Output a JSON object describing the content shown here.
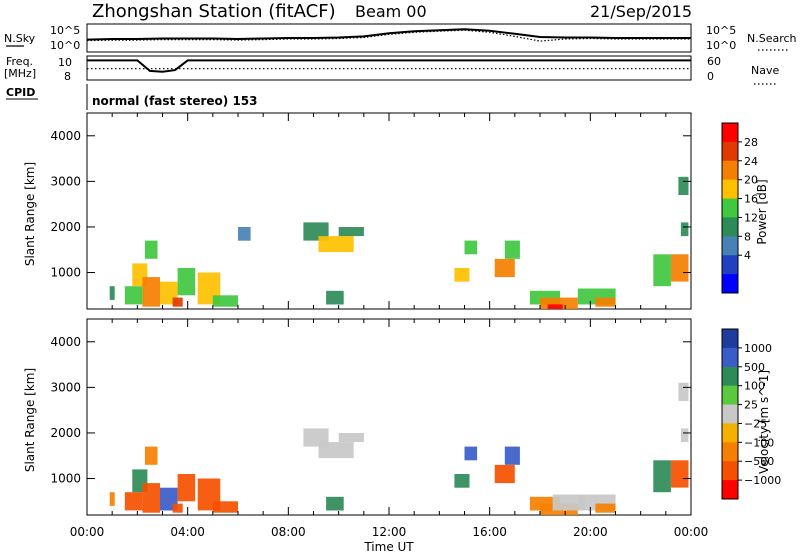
{
  "header": {
    "title": "Zhongshan Station (fitACF)",
    "beam": "Beam 00",
    "date": "21/Sep/2015"
  },
  "panel_labels": {
    "nsky": "N.Sky",
    "nsky_ticks": [
      "10^5",
      "10^0"
    ],
    "nsearch": "N.Search",
    "nsearch_ticks": [
      "10^5",
      "10^0"
    ],
    "freq": "Freq.",
    "freq_unit": "[MHz]",
    "freq_ticks": [
      "10",
      "8"
    ],
    "nave": "Nave",
    "nave_ticks": [
      "60",
      "0"
    ],
    "cpid": "CPID",
    "cpid_text": "normal (fast stereo) 153"
  },
  "chart_data": [
    {
      "type": "line",
      "title": "",
      "x": [
        0,
        1,
        2,
        3,
        4,
        5,
        6,
        7,
        8,
        9,
        10,
        11,
        12,
        13,
        14,
        15,
        16,
        17,
        18,
        19,
        20,
        21,
        22,
        23,
        24
      ],
      "series": [
        {
          "name": "N.Sky",
          "values": [
            2.2,
            2.3,
            2.3,
            2.4,
            2.4,
            2.4,
            2.3,
            2.4,
            2.5,
            2.5,
            2.6,
            2.8,
            3.4,
            3.8,
            4.0,
            4.2,
            3.9,
            3.3,
            2.7,
            2.6,
            2.6,
            2.5,
            2.5,
            2.5,
            2.5
          ]
        },
        {
          "name": "N.Search",
          "values": [
            2.0,
            2.1,
            2.1,
            2.2,
            2.2,
            2.2,
            2.1,
            2.2,
            2.3,
            2.3,
            2.4,
            2.6,
            3.2,
            3.6,
            3.8,
            4.0,
            3.6,
            2.8,
            1.9,
            2.3,
            2.4,
            2.3,
            2.3,
            2.3,
            2.3
          ]
        }
      ],
      "yscale": "log",
      "ylim": [
        0,
        5
      ]
    },
    {
      "type": "line",
      "x": [
        0,
        1,
        2,
        2.5,
        3,
        3.5,
        4,
        5,
        6,
        8,
        10,
        12,
        14,
        16,
        18,
        20,
        22,
        24
      ],
      "series": [
        {
          "name": "Freq.",
          "values": [
            10.3,
            10.3,
            10.3,
            9.0,
            8.9,
            9.1,
            10.3,
            10.3,
            10.3,
            10.3,
            10.3,
            10.3,
            10.3,
            10.3,
            10.3,
            10.3,
            10.3,
            10.3
          ]
        },
        {
          "name": "Nave",
          "values": [
            28,
            28,
            28,
            28,
            28,
            28,
            28,
            28,
            28,
            28,
            28,
            28,
            28,
            28,
            28,
            28,
            28,
            28
          ]
        }
      ],
      "freq_ylim": [
        8,
        10
      ],
      "nave_ylim": [
        0,
        60
      ]
    },
    {
      "type": "heatmap",
      "title": "Power",
      "ylabel": "Slant Range [km]",
      "xlabel": "Time UT",
      "xlim": [
        0,
        24
      ],
      "ylim": [
        200,
        4500
      ],
      "xticks": [
        "00:00",
        "04:00",
        "08:00",
        "12:00",
        "16:00",
        "20:00",
        "00:00"
      ],
      "yticks": [
        1000,
        2000,
        3000,
        4000
      ],
      "colorbar": {
        "label": "Power [dB]",
        "ticks": [
          "28",
          "24",
          "20",
          "16",
          "12",
          "8",
          "4"
        ],
        "colors": [
          "#ff0000",
          "#e03a00",
          "#f57f00",
          "#ffc000",
          "#40c840",
          "#2e8b57",
          "#4682b4",
          "#2040c0",
          "#0000ff"
        ]
      },
      "cells": [
        {
          "t0": 0.9,
          "t1": 1.1,
          "r0": 400,
          "r1": 700,
          "v": 8
        },
        {
          "t0": 1.5,
          "t1": 2.2,
          "r0": 300,
          "r1": 700,
          "v": 12
        },
        {
          "t0": 1.8,
          "t1": 2.4,
          "r0": 700,
          "r1": 1200,
          "v": 16
        },
        {
          "t0": 2.2,
          "t1": 2.9,
          "r0": 250,
          "r1": 900,
          "v": 20
        },
        {
          "t0": 2.3,
          "t1": 2.8,
          "r0": 1300,
          "r1": 1700,
          "v": 14
        },
        {
          "t0": 2.9,
          "t1": 3.6,
          "r0": 300,
          "r1": 800,
          "v": 16
        },
        {
          "t0": 3.4,
          "t1": 3.8,
          "r0": 250,
          "r1": 450,
          "v": 24
        },
        {
          "t0": 3.6,
          "t1": 4.3,
          "r0": 500,
          "r1": 1100,
          "v": 12
        },
        {
          "t0": 4.4,
          "t1": 5.3,
          "r0": 300,
          "r1": 1000,
          "v": 16
        },
        {
          "t0": 5.0,
          "t1": 6.0,
          "r0": 250,
          "r1": 500,
          "v": 12
        },
        {
          "t0": 6.0,
          "t1": 6.5,
          "r0": 1700,
          "r1": 2000,
          "v": 6
        },
        {
          "t0": 8.6,
          "t1": 9.6,
          "r0": 1700,
          "r1": 2100,
          "v": 8
        },
        {
          "t0": 9.2,
          "t1": 10.6,
          "r0": 1450,
          "r1": 1800,
          "v": 16
        },
        {
          "t0": 10.0,
          "t1": 11.0,
          "r0": 1800,
          "r1": 2000,
          "v": 8
        },
        {
          "t0": 9.5,
          "t1": 10.2,
          "r0": 300,
          "r1": 600,
          "v": 8
        },
        {
          "t0": 14.6,
          "t1": 15.2,
          "r0": 800,
          "r1": 1100,
          "v": 16
        },
        {
          "t0": 15.0,
          "t1": 15.5,
          "r0": 1400,
          "r1": 1700,
          "v": 12
        },
        {
          "t0": 16.2,
          "t1": 17.0,
          "r0": 900,
          "r1": 1300,
          "v": 20
        },
        {
          "t0": 16.6,
          "t1": 17.2,
          "r0": 1300,
          "r1": 1700,
          "v": 12
        },
        {
          "t0": 17.6,
          "t1": 18.8,
          "r0": 300,
          "r1": 600,
          "v": 12
        },
        {
          "t0": 18.0,
          "t1": 19.5,
          "r0": 200,
          "r1": 450,
          "v": 20
        },
        {
          "t0": 18.3,
          "t1": 18.9,
          "r0": 200,
          "r1": 300,
          "v": 28
        },
        {
          "t0": 19.5,
          "t1": 21.0,
          "r0": 300,
          "r1": 650,
          "v": 12
        },
        {
          "t0": 20.2,
          "t1": 21.0,
          "r0": 250,
          "r1": 450,
          "v": 20
        },
        {
          "t0": 22.5,
          "t1": 23.2,
          "r0": 700,
          "r1": 1400,
          "v": 12
        },
        {
          "t0": 23.2,
          "t1": 23.9,
          "r0": 800,
          "r1": 1400,
          "v": 20
        },
        {
          "t0": 23.5,
          "t1": 23.9,
          "r0": 2700,
          "r1": 3100,
          "v": 8
        },
        {
          "t0": 23.6,
          "t1": 23.9,
          "r0": 1800,
          "r1": 2100,
          "v": 8
        }
      ]
    },
    {
      "type": "heatmap",
      "title": "Velocity",
      "ylabel": "Slant Range [km]",
      "xlabel": "Time UT",
      "xlim": [
        0,
        24
      ],
      "ylim": [
        200,
        4500
      ],
      "xticks": [
        "00:00",
        "04:00",
        "08:00",
        "12:00",
        "16:00",
        "20:00",
        "00:00"
      ],
      "yticks": [
        1000,
        2000,
        3000,
        4000
      ],
      "colorbar": {
        "label": "Velocity [m s^-1]",
        "ticks": [
          "1000",
          "500",
          "100",
          "25",
          "−25",
          "−100",
          "−500",
          "−1000"
        ],
        "colors": [
          "#1e3c9c",
          "#3a5cc8",
          "#2e8b57",
          "#5cc840",
          "#c8c8c8",
          "#f5b000",
          "#f58000",
          "#f55000",
          "#ff0000"
        ]
      },
      "cells": [
        {
          "t0": 0.9,
          "t1": 1.1,
          "r0": 400,
          "r1": 700,
          "v": -100
        },
        {
          "t0": 1.5,
          "t1": 2.2,
          "r0": 300,
          "r1": 700,
          "v": -500
        },
        {
          "t0": 1.8,
          "t1": 2.4,
          "r0": 700,
          "r1": 1200,
          "v": 100
        },
        {
          "t0": 2.2,
          "t1": 2.9,
          "r0": 250,
          "r1": 900,
          "v": -500
        },
        {
          "t0": 2.3,
          "t1": 2.8,
          "r0": 1300,
          "r1": 1700,
          "v": -100
        },
        {
          "t0": 2.9,
          "t1": 3.6,
          "r0": 300,
          "r1": 800,
          "v": 500
        },
        {
          "t0": 3.4,
          "t1": 3.8,
          "r0": 250,
          "r1": 450,
          "v": -500
        },
        {
          "t0": 3.6,
          "t1": 4.3,
          "r0": 500,
          "r1": 1100,
          "v": -500
        },
        {
          "t0": 4.4,
          "t1": 5.3,
          "r0": 300,
          "r1": 1000,
          "v": -500
        },
        {
          "t0": 5.0,
          "t1": 6.0,
          "r0": 250,
          "r1": 500,
          "v": -500
        },
        {
          "t0": 8.6,
          "t1": 9.6,
          "r0": 1700,
          "r1": 2100,
          "v": 0
        },
        {
          "t0": 9.2,
          "t1": 10.6,
          "r0": 1450,
          "r1": 1800,
          "v": 0
        },
        {
          "t0": 10.0,
          "t1": 11.0,
          "r0": 1800,
          "r1": 2000,
          "v": 0
        },
        {
          "t0": 9.5,
          "t1": 10.2,
          "r0": 300,
          "r1": 600,
          "v": 100
        },
        {
          "t0": 14.6,
          "t1": 15.2,
          "r0": 800,
          "r1": 1100,
          "v": 100
        },
        {
          "t0": 15.0,
          "t1": 15.5,
          "r0": 1400,
          "r1": 1700,
          "v": 500
        },
        {
          "t0": 16.2,
          "t1": 17.0,
          "r0": 900,
          "r1": 1300,
          "v": -500
        },
        {
          "t0": 16.6,
          "t1": 17.2,
          "r0": 1300,
          "r1": 1700,
          "v": 500
        },
        {
          "t0": 17.6,
          "t1": 18.8,
          "r0": 300,
          "r1": 600,
          "v": -100
        },
        {
          "t0": 18.0,
          "t1": 19.5,
          "r0": 200,
          "r1": 450,
          "v": -100
        },
        {
          "t0": 18.5,
          "t1": 19.8,
          "r0": 300,
          "r1": 650,
          "v": 0
        },
        {
          "t0": 19.5,
          "t1": 21.0,
          "r0": 300,
          "r1": 650,
          "v": 0
        },
        {
          "t0": 20.2,
          "t1": 21.0,
          "r0": 250,
          "r1": 450,
          "v": -100
        },
        {
          "t0": 22.5,
          "t1": 23.2,
          "r0": 700,
          "r1": 1400,
          "v": 100
        },
        {
          "t0": 23.2,
          "t1": 23.9,
          "r0": 800,
          "r1": 1400,
          "v": -500
        },
        {
          "t0": 23.5,
          "t1": 23.9,
          "r0": 2700,
          "r1": 3100,
          "v": 0
        },
        {
          "t0": 23.6,
          "t1": 23.9,
          "r0": 1800,
          "r1": 2100,
          "v": 0
        }
      ]
    }
  ]
}
